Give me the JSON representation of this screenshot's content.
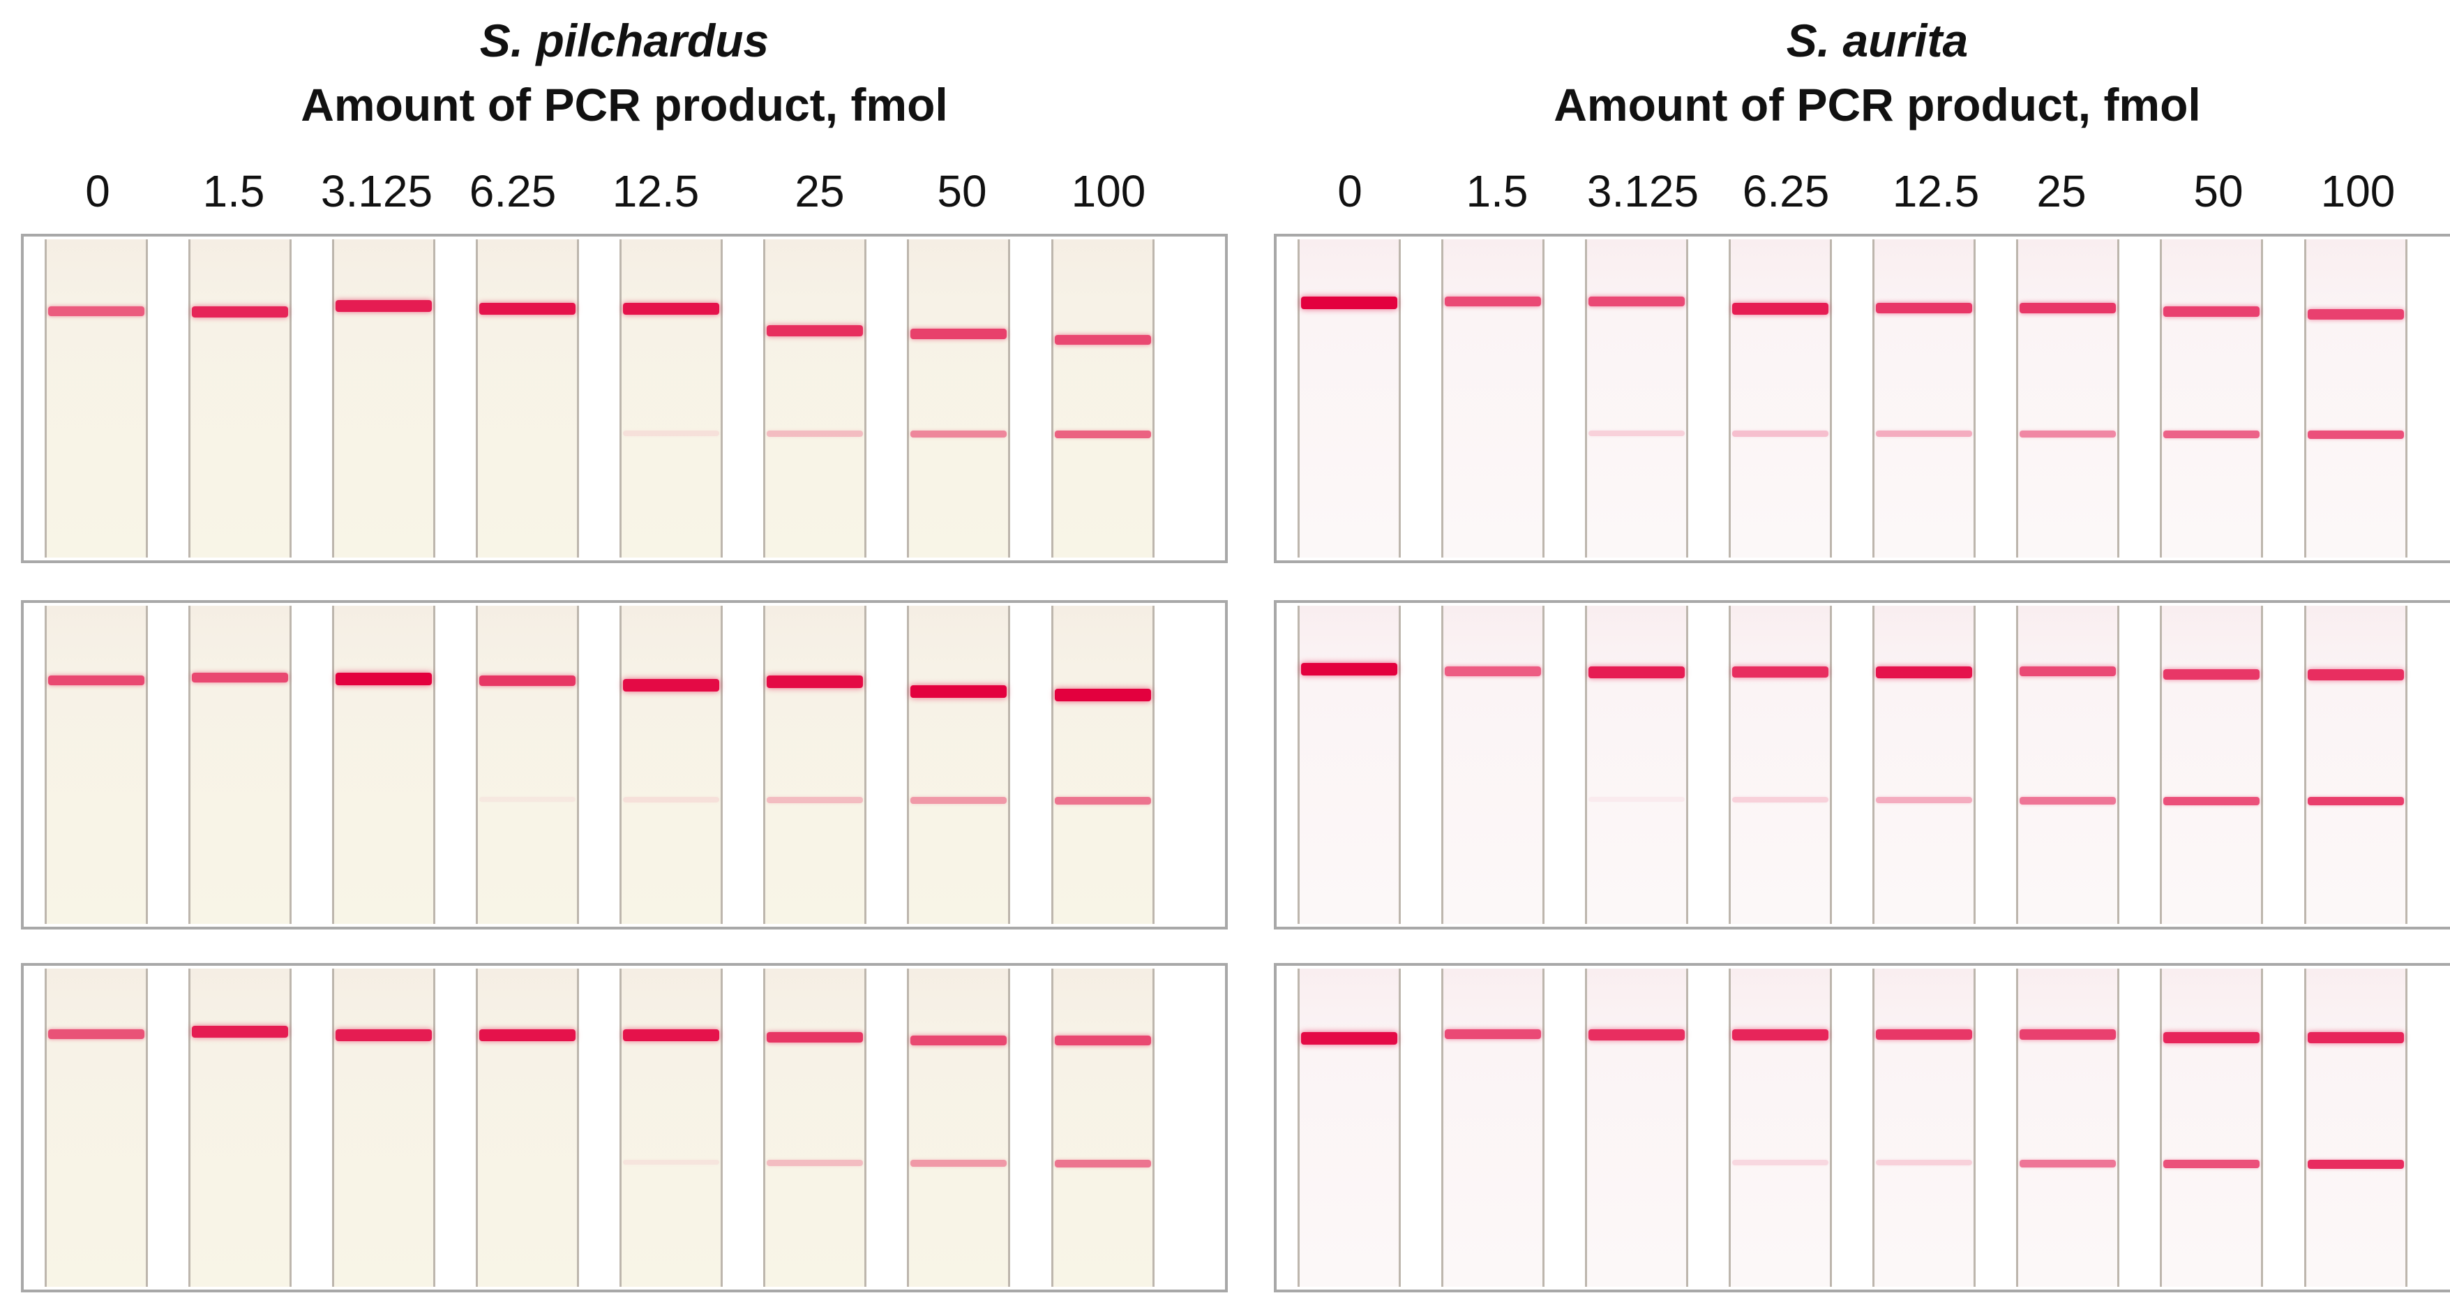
{
  "panels": [
    {
      "species": "S. pilchardus",
      "subtitle": "Amount of PCR product, fmol",
      "concentrations": [
        "0",
        "1.5",
        "3.125",
        "6.25",
        "12.5",
        "25",
        "50",
        "100"
      ],
      "strip_color": "#f8f4e6",
      "replicates": [
        {
          "control_line_pos": [
            0.21,
            0.21,
            0.19,
            0.2,
            0.2,
            0.27,
            0.28,
            0.3
          ],
          "control_intensity": [
            0.5,
            0.8,
            0.85,
            0.9,
            0.9,
            0.75,
            0.65,
            0.6
          ],
          "test_line_intensity": [
            0,
            0,
            0,
            0,
            0.05,
            0.15,
            0.3,
            0.4
          ]
        },
        {
          "control_line_pos": [
            0.22,
            0.21,
            0.21,
            0.22,
            0.23,
            0.22,
            0.25,
            0.26
          ],
          "control_intensity": [
            0.6,
            0.6,
            1,
            0.7,
            0.95,
            0.95,
            1,
            1
          ],
          "test_line_intensity": [
            0,
            0,
            0,
            0.03,
            0.05,
            0.15,
            0.25,
            0.35
          ]
        },
        {
          "control_line_pos": [
            0.19,
            0.18,
            0.19,
            0.19,
            0.19,
            0.2,
            0.21,
            0.21
          ],
          "control_intensity": [
            0.55,
            0.85,
            0.85,
            0.9,
            0.9,
            0.7,
            0.6,
            0.6
          ],
          "test_line_intensity": [
            0,
            0,
            0,
            0,
            0.04,
            0.15,
            0.25,
            0.35
          ]
        }
      ]
    },
    {
      "species": "S. aurita",
      "subtitle": "Amount of PCR product, fmol",
      "concentrations": [
        "0",
        "1.5",
        "3.125",
        "6.25",
        "12.5",
        "25",
        "50",
        "100"
      ],
      "strip_color": "#fcf6f7",
      "replicates": [
        {
          "control_line_pos": [
            0.18,
            0.18,
            0.18,
            0.2,
            0.2,
            0.2,
            0.21,
            0.22
          ],
          "control_intensity": [
            1,
            0.6,
            0.6,
            0.85,
            0.7,
            0.7,
            0.65,
            0.65
          ],
          "test_line_intensity": [
            0,
            0,
            0.1,
            0.15,
            0.2,
            0.3,
            0.4,
            0.45
          ]
        },
        {
          "control_line_pos": [
            0.18,
            0.19,
            0.19,
            0.19,
            0.19,
            0.19,
            0.2,
            0.2
          ],
          "control_intensity": [
            1,
            0.5,
            0.85,
            0.75,
            0.9,
            0.6,
            0.7,
            0.75
          ],
          "test_line_intensity": [
            0,
            0,
            0.03,
            0.1,
            0.2,
            0.35,
            0.45,
            0.5
          ]
        },
        {
          "control_line_pos": [
            0.2,
            0.19,
            0.19,
            0.19,
            0.19,
            0.19,
            0.2,
            0.2
          ],
          "control_intensity": [
            0.95,
            0.6,
            0.75,
            0.8,
            0.7,
            0.65,
            0.8,
            0.8
          ],
          "test_line_intensity": [
            0,
            0,
            0,
            0.08,
            0.1,
            0.35,
            0.45,
            0.55
          ]
        }
      ]
    }
  ],
  "colors": {
    "band": "#e3003e",
    "frame": "#a8a8a8",
    "background": "#ffffff"
  },
  "test_line_pos": 0.6
}
